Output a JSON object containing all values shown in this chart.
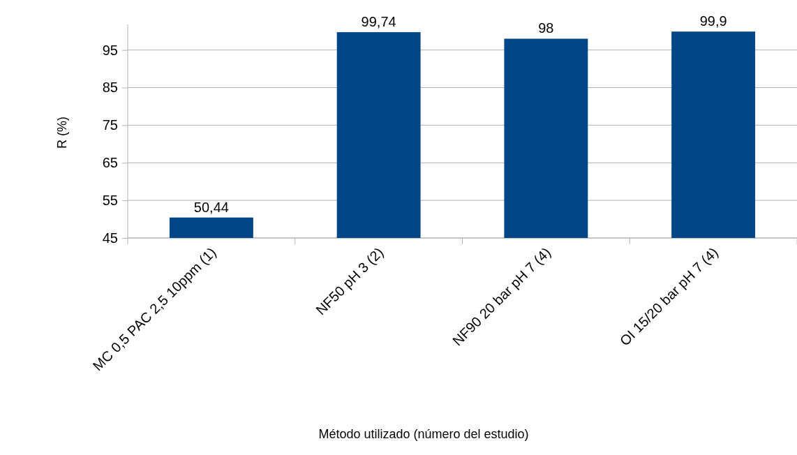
{
  "chart_data": {
    "type": "bar",
    "xlabel": "Método utilizado (número del estudio)",
    "ylabel": "R (%)",
    "categories": [
      "MC 0,5 PAC 2,5 10ppm (1)",
      "NF50 pH 3 (2)",
      "NF90 20 bar pH 7 (4)",
      "OI 15/20 bar pH 7 (4)"
    ],
    "values": [
      50.44,
      99.74,
      98,
      99.9
    ],
    "color": "#004586",
    "value_labels": [
      "50,44",
      "99,74",
      "98",
      "99,9"
    ],
    "ylim": [
      45,
      101.8
    ],
    "yticks": [
      45,
      55,
      65,
      75,
      85,
      95
    ],
    "grid": "y"
  }
}
